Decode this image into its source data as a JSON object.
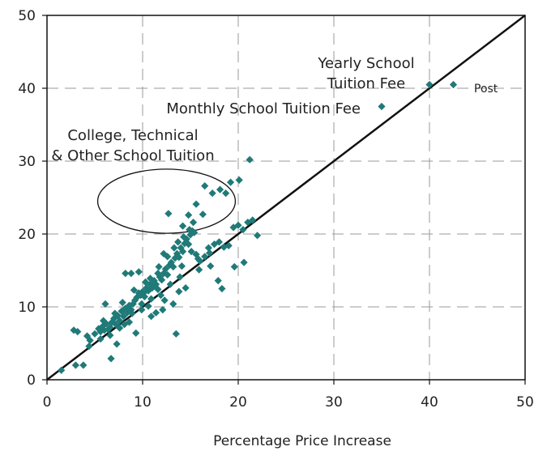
{
  "chart_data": {
    "type": "scatter",
    "title": "",
    "xlabel": "Percentage Price Increase",
    "ylabel": "",
    "xlim": [
      0,
      50
    ],
    "ylim": [
      0,
      50
    ],
    "xticks": [
      0,
      10,
      20,
      30,
      40,
      50
    ],
    "yticks": [
      0,
      10,
      20,
      30,
      40,
      50
    ],
    "grid": true,
    "legend": "none",
    "colors": {
      "points": "#1f7a78",
      "line": "#111111",
      "grid": "#9a9a9a"
    },
    "reference_line": {
      "x": [
        0,
        50
      ],
      "y": [
        0,
        50
      ]
    },
    "annotations": [
      {
        "id": "yearly-school",
        "lines": [
          "Yearly School",
          "Tuition Fee"
        ],
        "point": [
          40,
          40.5
        ]
      },
      {
        "id": "post",
        "lines": [
          "Post"
        ],
        "point": [
          42.5,
          40.5
        ]
      },
      {
        "id": "monthly-school",
        "lines": [
          "Monthly School Tuition Fee"
        ],
        "point": [
          35,
          37.5
        ]
      },
      {
        "id": "college",
        "lines": [
          "College, Technical",
          "& Other School Tuition"
        ],
        "point": [
          21,
          30.2
        ]
      }
    ],
    "ellipse": {
      "center": [
        12.5,
        24.5
      ],
      "rx": 7.2,
      "ry": 4.4
    },
    "points": [
      [
        1.5,
        1.3
      ],
      [
        3,
        2
      ],
      [
        3.8,
        2
      ],
      [
        2.8,
        6.8
      ],
      [
        3.2,
        6.6
      ],
      [
        4.2,
        6
      ],
      [
        4.5,
        5.4
      ],
      [
        4.4,
        4.6
      ],
      [
        5,
        6.3
      ],
      [
        5.4,
        7
      ],
      [
        5.6,
        6.6
      ],
      [
        5.8,
        7.3
      ],
      [
        6,
        6.8
      ],
      [
        6.2,
        7.7
      ],
      [
        6.4,
        6.9
      ],
      [
        6.6,
        7.2
      ],
      [
        6.8,
        7.9
      ],
      [
        7,
        8.4
      ],
      [
        7.2,
        7.6
      ],
      [
        7.4,
        8.8
      ],
      [
        7.6,
        8.1
      ],
      [
        7.8,
        9.4
      ],
      [
        8,
        8.7
      ],
      [
        8.2,
        9.8
      ],
      [
        8.4,
        9.2
      ],
      [
        8.6,
        10.2
      ],
      [
        8.8,
        9.6
      ],
      [
        9,
        10.4
      ],
      [
        9.2,
        10.9
      ],
      [
        9.4,
        11.3
      ],
      [
        9.6,
        11.9
      ],
      [
        9.8,
        11.6
      ],
      [
        10,
        12.1
      ],
      [
        10.2,
        11.4
      ],
      [
        10.4,
        12.6
      ],
      [
        10.6,
        12.2
      ],
      [
        10.8,
        13.1
      ],
      [
        11,
        12.6
      ],
      [
        11.2,
        13.6
      ],
      [
        11.4,
        13.1
      ],
      [
        11.6,
        12.4
      ],
      [
        11.8,
        14.1
      ],
      [
        12,
        13.7
      ],
      [
        12.2,
        14.6
      ],
      [
        12.4,
        15.2
      ],
      [
        12.6,
        14.4
      ],
      [
        12.8,
        15.7
      ],
      [
        13,
        16.1
      ],
      [
        13.2,
        15.5
      ],
      [
        13.4,
        16.7
      ],
      [
        13.6,
        17.3
      ],
      [
        13.8,
        16.8
      ],
      [
        14,
        18.1
      ],
      [
        14.2,
        17.6
      ],
      [
        14.4,
        18.7
      ],
      [
        14.6,
        19.3
      ],
      [
        14.8,
        18.6
      ],
      [
        15,
        19.9
      ],
      [
        15.2,
        20.4
      ],
      [
        15.4,
        20.2
      ],
      [
        15.6,
        17.2
      ],
      [
        15.8,
        16.6
      ],
      [
        16,
        16.3
      ],
      [
        16.5,
        16.9
      ],
      [
        17,
        17.4
      ],
      [
        17.5,
        18.6
      ],
      [
        18,
        18.9
      ],
      [
        18.5,
        18.2
      ],
      [
        19,
        18.4
      ],
      [
        19.5,
        20.9
      ],
      [
        20,
        21.2
      ],
      [
        20.5,
        20.6
      ],
      [
        21,
        21.6
      ],
      [
        21.5,
        21.9
      ],
      [
        22,
        19.8
      ],
      [
        16.3,
        22.7
      ],
      [
        15.6,
        24.1
      ],
      [
        14.8,
        22.6
      ],
      [
        14.2,
        21.1
      ],
      [
        12.7,
        22.8
      ],
      [
        16.5,
        26.6
      ],
      [
        17.3,
        25.6
      ],
      [
        18.1,
        26.1
      ],
      [
        18.7,
        25.6
      ],
      [
        19.2,
        27.1
      ],
      [
        20.1,
        27.4
      ],
      [
        13.8,
        12.1
      ],
      [
        12.3,
        10.9
      ],
      [
        13.2,
        10.4
      ],
      [
        12.1,
        9.6
      ],
      [
        11.4,
        9.2
      ],
      [
        10.9,
        8.7
      ],
      [
        9.3,
        6.4
      ],
      [
        8.6,
        7.9
      ],
      [
        7.3,
        4.9
      ],
      [
        6.7,
        2.9
      ],
      [
        13.5,
        6.3
      ],
      [
        14.5,
        12.6
      ],
      [
        15.9,
        15.1
      ],
      [
        17.1,
        15.6
      ],
      [
        17.9,
        13.6
      ],
      [
        18.3,
        12.5
      ],
      [
        19.6,
        15.5
      ],
      [
        20.6,
        16.1
      ],
      [
        8.2,
        14.6
      ],
      [
        8.8,
        14.6
      ],
      [
        9.6,
        14.8
      ],
      [
        10.8,
        13.9
      ],
      [
        11.7,
        15.5
      ],
      [
        12.6,
        16.9
      ],
      [
        13.7,
        18.9
      ],
      [
        14.9,
        20.6
      ],
      [
        10.1,
        11.9
      ],
      [
        9.1,
        12.3
      ],
      [
        7.9,
        10.6
      ],
      [
        6.1,
        10.4
      ],
      [
        7.1,
        9.1
      ],
      [
        5.9,
        8.1
      ],
      [
        9.9,
        10.4
      ],
      [
        10.6,
        10.1
      ],
      [
        11.9,
        11.6
      ],
      [
        12.9,
        13.1
      ],
      [
        13.9,
        14.1
      ],
      [
        11.1,
        12.9
      ],
      [
        10.3,
        13.4
      ],
      [
        12.2,
        17.3
      ],
      [
        13.3,
        18.1
      ],
      [
        14.3,
        19.6
      ],
      [
        15.3,
        21.6
      ],
      [
        14.1,
        15.6
      ],
      [
        16.9,
        18.1
      ],
      [
        15.1,
        17.6
      ],
      [
        11.6,
        14.6
      ],
      [
        10.9,
        11.1
      ],
      [
        9.9,
        9.6
      ],
      [
        8.9,
        9.1
      ],
      [
        8.1,
        7.6
      ],
      [
        7.6,
        7.1
      ],
      [
        6.6,
        6.1
      ],
      [
        5.6,
        5.6
      ],
      [
        21.2,
        30.2
      ],
      [
        35,
        37.5
      ],
      [
        40,
        40.5
      ],
      [
        42.5,
        40.5
      ]
    ]
  }
}
